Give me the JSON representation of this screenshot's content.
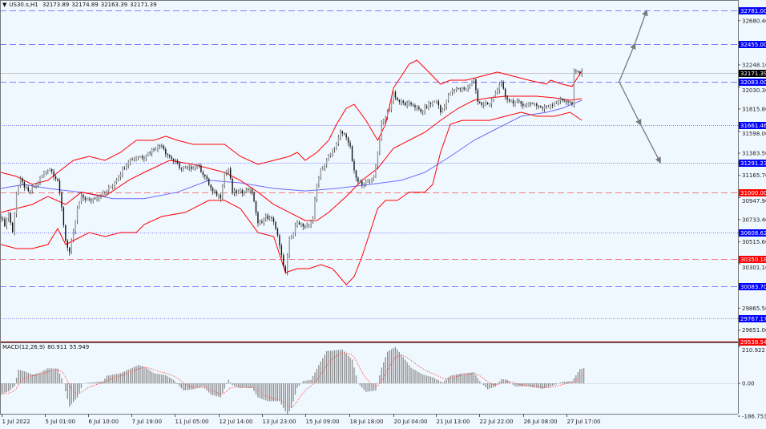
{
  "header": {
    "symbol": "US30.s,H1",
    "open": "32173.89",
    "high": "32174.89",
    "low": "32163.39",
    "close": "32171.39"
  },
  "macd_label": {
    "name": "MACD(12,26,9)",
    "main": "80.911",
    "signal": "55.949"
  },
  "colors": {
    "background": "#f0f8ff",
    "candle": "#1a1a1a",
    "bands": "#ff0000",
    "ma": "#6a6aff",
    "level_blue": "#0000ff",
    "level_red": "#ff0000",
    "current": "#000000",
    "arrow": "#7a7a7a",
    "macd_hist": "#8c8c8c",
    "macd_signal": "#ff5050"
  },
  "chart_data": [
    {
      "type": "candlestick",
      "title": "US30.s,H1",
      "ylim": [
        29538.54,
        32781.0
      ],
      "y_ticks": [
        "32680.40",
        "32248.10",
        "32030.30",
        "31815.80",
        "31598.00",
        "31383.50",
        "31165.70",
        "30947.90",
        "30733.40",
        "30515.60",
        "30301.10",
        "29865.50",
        "29651.00"
      ],
      "x_ticks": [
        "1 Jul 2022",
        "5 Jul 01:00",
        "6 Jul 10:00",
        "7 Jul 19:00",
        "11 Jul 05:00",
        "12 Jul 14:00",
        "13 Jul 23:00",
        "15 Jul 09:00",
        "18 Jul 18:00",
        "20 Jul 04:00",
        "21 Jul 13:00",
        "22 Jul 22:00",
        "26 Jul 08:00",
        "27 Jul 17:00"
      ],
      "current_price": "32171.39",
      "levels": [
        {
          "price": "32781.00",
          "style": "dashed",
          "color": "blue"
        },
        {
          "price": "32455.00",
          "style": "dashed",
          "color": "blue"
        },
        {
          "price": "32083.00",
          "style": "dashed",
          "color": "blue"
        },
        {
          "price": "31661.46",
          "style": "dotted",
          "color": "blue"
        },
        {
          "price": "31291.23",
          "style": "dotted",
          "color": "blue"
        },
        {
          "price": "31000.00",
          "style": "dashed",
          "color": "red"
        },
        {
          "price": "30608.62",
          "style": "dotted",
          "color": "blue"
        },
        {
          "price": "30350.18",
          "style": "dashed",
          "color": "red"
        },
        {
          "price": "30083.70",
          "style": "dashed",
          "color": "blue"
        },
        {
          "price": "29767.17",
          "style": "dotted",
          "color": "blue"
        },
        {
          "price": "29538.54",
          "style": "solid",
          "color": "red"
        }
      ],
      "close_series": [
        [
          0,
          30763
        ],
        [
          2,
          30685
        ],
        [
          4,
          30803
        ],
        [
          6,
          30606
        ],
        [
          8,
          31001
        ],
        [
          10,
          31117
        ],
        [
          14,
          31001
        ],
        [
          18,
          31077
        ],
        [
          22,
          31195
        ],
        [
          25,
          31234
        ],
        [
          29,
          31117
        ],
        [
          31,
          30842
        ],
        [
          33,
          30530
        ],
        [
          35,
          30410
        ],
        [
          37,
          30606
        ],
        [
          39,
          30842
        ],
        [
          41,
          30960
        ],
        [
          45,
          30921
        ],
        [
          49,
          30960
        ],
        [
          53,
          31001
        ],
        [
          57,
          31077
        ],
        [
          61,
          31195
        ],
        [
          65,
          31313
        ],
        [
          69,
          31352
        ],
        [
          73,
          31352
        ],
        [
          78,
          31431
        ],
        [
          82,
          31470
        ],
        [
          84,
          31391
        ],
        [
          88,
          31313
        ],
        [
          92,
          31234
        ],
        [
          96,
          31234
        ],
        [
          100,
          31274
        ],
        [
          104,
          31156
        ],
        [
          108,
          31001
        ],
        [
          112,
          30960
        ],
        [
          114,
          31195
        ],
        [
          116,
          31234
        ],
        [
          118,
          31001
        ],
        [
          122,
          31001
        ],
        [
          127,
          31038
        ],
        [
          129,
          30921
        ],
        [
          131,
          30685
        ],
        [
          135,
          30763
        ],
        [
          139,
          30724
        ],
        [
          141,
          30567
        ],
        [
          143,
          30371
        ],
        [
          145,
          30214
        ],
        [
          147,
          30530
        ],
        [
          149,
          30606
        ],
        [
          151,
          30724
        ],
        [
          153,
          30685
        ],
        [
          155,
          30646
        ],
        [
          157,
          30685
        ],
        [
          159,
          30763
        ],
        [
          161,
          31077
        ],
        [
          163,
          31234
        ],
        [
          165,
          31274
        ],
        [
          167,
          31352
        ],
        [
          171,
          31470
        ],
        [
          173,
          31588
        ],
        [
          176,
          31549
        ],
        [
          178,
          31431
        ],
        [
          180,
          31195
        ],
        [
          182,
          31093
        ],
        [
          186,
          31093
        ],
        [
          190,
          31156
        ],
        [
          192,
          31391
        ],
        [
          194,
          31666
        ],
        [
          196,
          31745
        ],
        [
          198,
          31823
        ],
        [
          200,
          31980
        ],
        [
          202,
          31902
        ],
        [
          206,
          31862
        ],
        [
          210,
          31862
        ],
        [
          214,
          31784
        ],
        [
          218,
          31862
        ],
        [
          222,
          31902
        ],
        [
          224,
          31784
        ],
        [
          227,
          31902
        ],
        [
          229,
          31980
        ],
        [
          233,
          32020
        ],
        [
          237,
          32020
        ],
        [
          241,
          32098
        ],
        [
          243,
          31902
        ],
        [
          245,
          31862
        ],
        [
          249,
          31862
        ],
        [
          253,
          32020
        ],
        [
          255,
          32059
        ],
        [
          257,
          31941
        ],
        [
          259,
          31902
        ],
        [
          263,
          31878
        ],
        [
          267,
          31862
        ],
        [
          271,
          31878
        ],
        [
          276,
          31823
        ],
        [
          280,
          31862
        ],
        [
          284,
          31902
        ],
        [
          288,
          31902
        ],
        [
          291,
          31862
        ],
        [
          292,
          32177
        ],
        [
          294,
          32177
        ],
        [
          296,
          32171
        ]
      ],
      "bollinger_upper": [
        [
          0,
          31195
        ],
        [
          8,
          31156
        ],
        [
          16,
          31077
        ],
        [
          24,
          31117
        ],
        [
          29,
          31195
        ],
        [
          37,
          31313
        ],
        [
          45,
          31352
        ],
        [
          53,
          31313
        ],
        [
          61,
          31391
        ],
        [
          69,
          31509
        ],
        [
          78,
          31509
        ],
        [
          84,
          31549
        ],
        [
          90,
          31509
        ],
        [
          98,
          31470
        ],
        [
          106,
          31470
        ],
        [
          114,
          31470
        ],
        [
          122,
          31352
        ],
        [
          131,
          31274
        ],
        [
          139,
          31313
        ],
        [
          147,
          31352
        ],
        [
          151,
          31391
        ],
        [
          155,
          31313
        ],
        [
          161,
          31391
        ],
        [
          167,
          31509
        ],
        [
          171,
          31666
        ],
        [
          176,
          31823
        ],
        [
          180,
          31862
        ],
        [
          186,
          31705
        ],
        [
          192,
          31509
        ],
        [
          196,
          31666
        ],
        [
          200,
          32020
        ],
        [
          204,
          32137
        ],
        [
          208,
          32255
        ],
        [
          212,
          32294
        ],
        [
          218,
          32177
        ],
        [
          224,
          32059
        ],
        [
          229,
          32098
        ],
        [
          237,
          32098
        ],
        [
          245,
          32137
        ],
        [
          253,
          32177
        ],
        [
          261,
          32137
        ],
        [
          269,
          32098
        ],
        [
          278,
          32059
        ],
        [
          280,
          32098
        ],
        [
          286,
          32059
        ],
        [
          291,
          32037
        ],
        [
          296,
          32192
        ]
      ],
      "bollinger_middle": [
        [
          0,
          30803
        ],
        [
          8,
          30842
        ],
        [
          16,
          30881
        ],
        [
          24,
          30960
        ],
        [
          33,
          30881
        ],
        [
          41,
          31001
        ],
        [
          53,
          30960
        ],
        [
          65,
          31117
        ],
        [
          73,
          31195
        ],
        [
          86,
          31313
        ],
        [
          98,
          31274
        ],
        [
          106,
          31234
        ],
        [
          114,
          31195
        ],
        [
          122,
          31117
        ],
        [
          131,
          31001
        ],
        [
          139,
          30881
        ],
        [
          147,
          30803
        ],
        [
          155,
          30724
        ],
        [
          161,
          30724
        ],
        [
          167,
          30803
        ],
        [
          176,
          30960
        ],
        [
          184,
          31117
        ],
        [
          192,
          31234
        ],
        [
          200,
          31431
        ],
        [
          208,
          31509
        ],
        [
          216,
          31588
        ],
        [
          224,
          31705
        ],
        [
          233,
          31823
        ],
        [
          241,
          31902
        ],
        [
          249,
          31925
        ],
        [
          257,
          31941
        ],
        [
          265,
          31941
        ],
        [
          273,
          31941
        ],
        [
          282,
          31925
        ],
        [
          290,
          31902
        ],
        [
          296,
          31917
        ]
      ],
      "bollinger_lower": [
        [
          0,
          30489
        ],
        [
          8,
          30449
        ],
        [
          16,
          30449
        ],
        [
          24,
          30489
        ],
        [
          29,
          30646
        ],
        [
          33,
          30489
        ],
        [
          37,
          30528
        ],
        [
          45,
          30606
        ],
        [
          53,
          30567
        ],
        [
          61,
          30606
        ],
        [
          69,
          30606
        ],
        [
          73,
          30685
        ],
        [
          82,
          30763
        ],
        [
          94,
          30803
        ],
        [
          106,
          30921
        ],
        [
          114,
          30921
        ],
        [
          122,
          30842
        ],
        [
          131,
          30606
        ],
        [
          139,
          30567
        ],
        [
          145,
          30214
        ],
        [
          151,
          30253
        ],
        [
          157,
          30253
        ],
        [
          163,
          30292
        ],
        [
          169,
          30253
        ],
        [
          176,
          30096
        ],
        [
          180,
          30175
        ],
        [
          184,
          30371
        ],
        [
          188,
          30606
        ],
        [
          192,
          30842
        ],
        [
          196,
          30921
        ],
        [
          202,
          30921
        ],
        [
          208,
          31001
        ],
        [
          216,
          31001
        ],
        [
          220,
          31077
        ],
        [
          224,
          31391
        ],
        [
          229,
          31666
        ],
        [
          235,
          31705
        ],
        [
          241,
          31705
        ],
        [
          249,
          31705
        ],
        [
          257,
          31745
        ],
        [
          265,
          31784
        ],
        [
          273,
          31745
        ],
        [
          282,
          31745
        ],
        [
          290,
          31784
        ],
        [
          296,
          31705
        ]
      ],
      "moving_average": [
        [
          0,
          31038
        ],
        [
          12,
          31077
        ],
        [
          24,
          31038
        ],
        [
          41,
          31001
        ],
        [
          57,
          30938
        ],
        [
          73,
          30938
        ],
        [
          90,
          31001
        ],
        [
          106,
          31117
        ],
        [
          122,
          31093
        ],
        [
          139,
          31038
        ],
        [
          155,
          31014
        ],
        [
          171,
          31038
        ],
        [
          188,
          31077
        ],
        [
          204,
          31117
        ],
        [
          216,
          31195
        ],
        [
          229,
          31352
        ],
        [
          241,
          31509
        ],
        [
          253,
          31627
        ],
        [
          265,
          31745
        ],
        [
          278,
          31784
        ],
        [
          286,
          31823
        ],
        [
          296,
          31902
        ]
      ],
      "projection_arrows": {
        "origin": [
          315,
          32083
        ],
        "up": [
          [
            323,
            32455
          ],
          [
            329,
            32781
          ]
        ],
        "down": [
          [
            326,
            31661
          ],
          [
            336,
            31291
          ]
        ]
      }
    },
    {
      "type": "bar",
      "title": "MACD(12,26,9)",
      "ylim": [
        -186.753,
        210.922
      ],
      "y_ticks": [
        "210.922",
        "0.00",
        "-186.753"
      ],
      "histogram": [
        [
          0,
          -61
        ],
        [
          4,
          -46
        ],
        [
          7,
          -15
        ],
        [
          9,
          77
        ],
        [
          11,
          73
        ],
        [
          16,
          50
        ],
        [
          20,
          61
        ],
        [
          24,
          86
        ],
        [
          29,
          84
        ],
        [
          32,
          0
        ],
        [
          35,
          -133
        ],
        [
          39,
          -80
        ],
        [
          42,
          0
        ],
        [
          46,
          5
        ],
        [
          52,
          12
        ],
        [
          54,
          43
        ],
        [
          61,
          58
        ],
        [
          67,
          89
        ],
        [
          70,
          104
        ],
        [
          73,
          96
        ],
        [
          78,
          58
        ],
        [
          84,
          46
        ],
        [
          88,
          20
        ],
        [
          93,
          -41
        ],
        [
          98,
          -34
        ],
        [
          103,
          -18
        ],
        [
          107,
          -64
        ],
        [
          112,
          -80
        ],
        [
          116,
          20
        ],
        [
          118,
          -11
        ],
        [
          122,
          -26
        ],
        [
          128,
          -26
        ],
        [
          131,
          -80
        ],
        [
          136,
          -102
        ],
        [
          142,
          -102
        ],
        [
          146,
          -179
        ],
        [
          148,
          -141
        ],
        [
          151,
          -26
        ],
        [
          154,
          12
        ],
        [
          158,
          20
        ],
        [
          162,
          104
        ],
        [
          166,
          184
        ],
        [
          174,
          193
        ],
        [
          179,
          135
        ],
        [
          182,
          0
        ],
        [
          186,
          -49
        ],
        [
          191,
          -41
        ],
        [
          194,
          89
        ],
        [
          197,
          181
        ],
        [
          201,
          208
        ],
        [
          205,
          150
        ],
        [
          209,
          89
        ],
        [
          215,
          50
        ],
        [
          220,
          35
        ],
        [
          225,
          5
        ],
        [
          229,
          43
        ],
        [
          234,
          55
        ],
        [
          241,
          63
        ],
        [
          244,
          12
        ],
        [
          248,
          -34
        ],
        [
          252,
          -18
        ],
        [
          255,
          24
        ],
        [
          258,
          20
        ],
        [
          262,
          -18
        ],
        [
          269,
          -18
        ],
        [
          276,
          -31
        ],
        [
          282,
          -11
        ],
        [
          286,
          9
        ],
        [
          291,
          12
        ],
        [
          295,
          81
        ],
        [
          297,
          86
        ]
      ]
    }
  ]
}
